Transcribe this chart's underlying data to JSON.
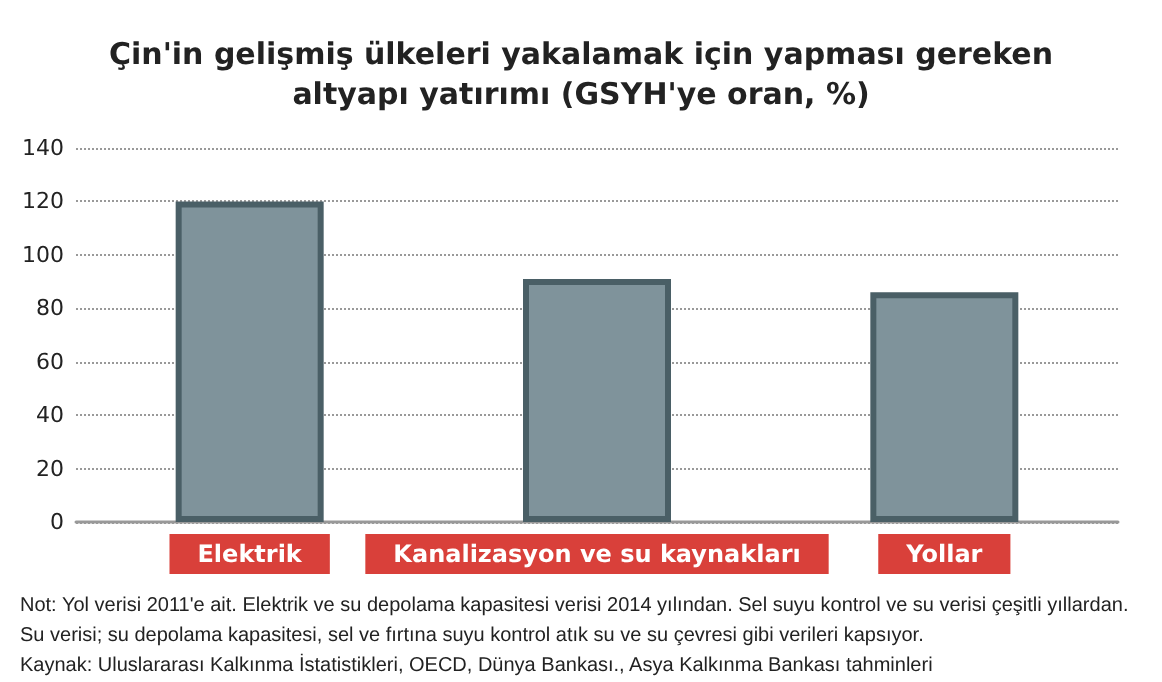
{
  "chart_data": {
    "type": "bar",
    "title": "Çin'in gelişmiş ülkeleri yakalamak için yapması gereken\naltyapı yatırımı (GSYH'ye oran, %)",
    "categories": [
      "Elektrik",
      "Kanalizasyon ve su kaynakları",
      "Yollar"
    ],
    "values": [
      120,
      91,
      86
    ],
    "color": "#7f939b",
    "ylim": [
      0,
      140
    ],
    "yticks": [
      0,
      20,
      40,
      60,
      80,
      100,
      120,
      140
    ],
    "grid": "y",
    "annotations": [
      "Not: Yol verisi 2011'e ait. Elektrik ve su depolama kapasitesi verisi 2014 yılından. Sel suyu kontrol ve su verisi çeşitli yıllardan.",
      "Su verisi; su depolama kapasitesi, sel ve fırtına suyu kontrol atık su ve su çevresi gibi verileri kapsıyor.",
      "Kaynak: Uluslararası Kalkınma İstatistikleri, OECD, Dünya Bankası., Asya Kalkınma Bankası tahminleri"
    ]
  }
}
